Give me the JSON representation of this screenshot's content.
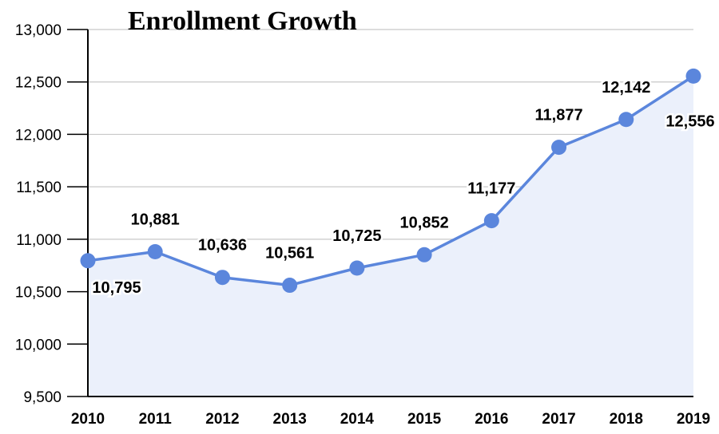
{
  "chart_data": {
    "type": "area",
    "title": "Enrollment Growth",
    "xlabel": "",
    "ylabel": "",
    "categories": [
      "2010",
      "2011",
      "2012",
      "2013",
      "2014",
      "2015",
      "2016",
      "2017",
      "2018",
      "2019"
    ],
    "values": [
      10795,
      10881,
      10636,
      10561,
      10725,
      10852,
      11177,
      11877,
      12142,
      12556
    ],
    "data_labels": [
      "10,795",
      "10,881",
      "10,636",
      "10,561",
      "10,725",
      "10,852",
      "11,177",
      "11,877",
      "12,142",
      "12,556"
    ],
    "ylim": [
      9500,
      13000
    ],
    "y_ticks": [
      9500,
      10000,
      10500,
      11000,
      11500,
      12000,
      12500,
      13000
    ],
    "y_tick_labels": [
      "9,500",
      "10,000",
      "10,500",
      "11,000",
      "11,500",
      "12,000",
      "12,500",
      "13,000"
    ],
    "grid": true,
    "legend": "none",
    "colors": {
      "line": "#5B86DC",
      "fill": "#EBF0FB",
      "grid": "#C8C8C8",
      "axis": "#000000"
    }
  }
}
